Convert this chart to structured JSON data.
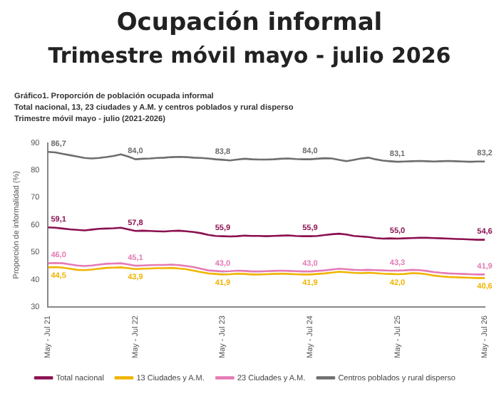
{
  "chart_data": {
    "type": "line",
    "title": "Ocupación informal",
    "subtitle": "Trimestre móvil mayo - julio 2026",
    "annotations": [
      "Gráfico1. Proporción de población ocupada informal",
      "Total nacional, 13, 23 ciudades y A.M. y centros poblados y rural disperso",
      "Trimestre móvil mayo - julio (2021-2026)"
    ],
    "ylabel": "Proporción de informalidad (%)",
    "categories": [
      "May - Jul 21",
      null,
      null,
      null,
      null,
      null,
      null,
      null,
      null,
      null,
      null,
      null,
      "May - Jul 22",
      null,
      null,
      null,
      null,
      null,
      null,
      null,
      null,
      null,
      null,
      null,
      "May - Jul 23",
      null,
      null,
      null,
      null,
      null,
      null,
      null,
      null,
      null,
      null,
      null,
      "May - Jul 24",
      null,
      null,
      null,
      null,
      null,
      null,
      null,
      null,
      null,
      null,
      null,
      "May - Jul 25",
      null,
      null,
      null,
      null,
      null,
      null,
      null,
      null,
      null,
      null,
      null,
      "May - Jul 26"
    ],
    "ylim": [
      30,
      90
    ],
    "yticks": [
      30,
      40,
      50,
      60,
      70,
      80,
      90
    ],
    "grid": false,
    "legend": "bottom",
    "marker": "none",
    "series": [
      {
        "name": "Total nacional",
        "color": "#8b1050",
        "values": [
          59.1,
          59.0,
          58.7,
          58.4,
          58.2,
          58.0,
          58.3,
          58.6,
          58.7,
          58.8,
          59.0,
          58.4,
          57.8,
          57.9,
          57.8,
          57.7,
          57.6,
          57.8,
          57.9,
          57.7,
          57.4,
          57.0,
          56.4,
          56.0,
          55.9,
          55.8,
          55.9,
          56.1,
          56.0,
          56.0,
          55.9,
          56.0,
          56.1,
          56.2,
          56.0,
          55.9,
          55.9,
          56.0,
          56.3,
          56.6,
          56.8,
          56.5,
          56.0,
          55.8,
          55.6,
          55.2,
          55.0,
          55.1,
          55.0,
          55.1,
          55.2,
          55.3,
          55.3,
          55.2,
          55.1,
          55.0,
          54.9,
          54.8,
          54.7,
          54.6,
          54.6
        ],
        "value_labels": [
          "59,1",
          null,
          null,
          null,
          null,
          null,
          null,
          null,
          null,
          null,
          null,
          null,
          "57,8",
          null,
          null,
          null,
          null,
          null,
          null,
          null,
          null,
          null,
          null,
          null,
          "55,9",
          null,
          null,
          null,
          null,
          null,
          null,
          null,
          null,
          null,
          null,
          null,
          "55,9",
          null,
          null,
          null,
          null,
          null,
          null,
          null,
          null,
          null,
          null,
          null,
          "55,0",
          null,
          null,
          null,
          null,
          null,
          null,
          null,
          null,
          null,
          null,
          null,
          "54,6"
        ]
      },
      {
        "name": "13 Ciudades y A.M.",
        "color": "#f0b400",
        "values": [
          44.5,
          44.6,
          44.4,
          44.0,
          43.6,
          43.5,
          43.7,
          44.0,
          44.3,
          44.4,
          44.5,
          44.2,
          43.9,
          44.0,
          44.1,
          44.2,
          44.2,
          44.3,
          44.1,
          43.8,
          43.3,
          42.8,
          42.3,
          42.1,
          41.9,
          42.0,
          42.2,
          42.1,
          41.9,
          41.9,
          42.0,
          42.1,
          42.2,
          42.1,
          42.0,
          41.9,
          41.9,
          42.1,
          42.3,
          42.6,
          42.9,
          42.7,
          42.5,
          42.4,
          42.5,
          42.4,
          42.2,
          42.1,
          42.0,
          42.1,
          42.4,
          42.3,
          42.0,
          41.5,
          41.2,
          41.0,
          40.9,
          40.8,
          40.7,
          40.6,
          40.6
        ],
        "value_labels": [
          "44,5",
          null,
          null,
          null,
          null,
          null,
          null,
          null,
          null,
          null,
          null,
          null,
          "43,9",
          null,
          null,
          null,
          null,
          null,
          null,
          null,
          null,
          null,
          null,
          null,
          "41,9",
          null,
          null,
          null,
          null,
          null,
          null,
          null,
          null,
          null,
          null,
          null,
          "41,9",
          null,
          null,
          null,
          null,
          null,
          null,
          null,
          null,
          null,
          null,
          null,
          "42,0",
          null,
          null,
          null,
          null,
          null,
          null,
          null,
          null,
          null,
          null,
          null,
          "40,6"
        ]
      },
      {
        "name": "23 Ciudades y A.M.",
        "color": "#e57ab5",
        "values": [
          46.0,
          46.1,
          46.0,
          45.6,
          45.2,
          45.0,
          45.2,
          45.5,
          45.8,
          45.9,
          46.0,
          45.6,
          45.1,
          45.2,
          45.3,
          45.4,
          45.4,
          45.5,
          45.3,
          45.0,
          44.6,
          44.0,
          43.4,
          43.2,
          43.0,
          43.1,
          43.3,
          43.2,
          43.0,
          43.0,
          43.1,
          43.2,
          43.3,
          43.2,
          43.1,
          43.0,
          43.0,
          43.2,
          43.4,
          43.7,
          44.0,
          43.8,
          43.6,
          43.5,
          43.6,
          43.5,
          43.4,
          43.3,
          43.3,
          43.4,
          43.6,
          43.5,
          43.2,
          42.8,
          42.5,
          42.3,
          42.2,
          42.1,
          42.0,
          41.9,
          41.9
        ],
        "value_labels": [
          "46,0",
          null,
          null,
          null,
          null,
          null,
          null,
          null,
          null,
          null,
          null,
          null,
          "45,1",
          null,
          null,
          null,
          null,
          null,
          null,
          null,
          null,
          null,
          null,
          null,
          "43,0",
          null,
          null,
          null,
          null,
          null,
          null,
          null,
          null,
          null,
          null,
          null,
          "43,0",
          null,
          null,
          null,
          null,
          null,
          null,
          null,
          null,
          null,
          null,
          null,
          "43,3",
          null,
          null,
          null,
          null,
          null,
          null,
          null,
          null,
          null,
          null,
          null,
          "41,9"
        ]
      },
      {
        "name": "Centros poblados y rural disperso",
        "color": "#6e6e6e",
        "values": [
          86.7,
          86.5,
          86.0,
          85.5,
          85.0,
          84.5,
          84.3,
          84.5,
          84.8,
          85.2,
          85.8,
          85.0,
          84.0,
          84.2,
          84.3,
          84.5,
          84.6,
          84.8,
          84.9,
          84.8,
          84.6,
          84.5,
          84.3,
          84.0,
          83.8,
          83.6,
          83.9,
          84.2,
          84.0,
          83.9,
          83.9,
          84.0,
          84.2,
          84.3,
          84.1,
          84.0,
          84.0,
          84.2,
          84.4,
          84.3,
          83.8,
          83.3,
          83.8,
          84.3,
          84.6,
          84.0,
          83.5,
          83.3,
          83.1,
          83.2,
          83.3,
          83.4,
          83.3,
          83.2,
          83.3,
          83.4,
          83.3,
          83.2,
          83.1,
          83.2,
          83.2
        ],
        "value_labels": [
          "86,7",
          null,
          null,
          null,
          null,
          null,
          null,
          null,
          null,
          null,
          null,
          null,
          "84,0",
          null,
          null,
          null,
          null,
          null,
          null,
          null,
          null,
          null,
          null,
          null,
          "83,8",
          null,
          null,
          null,
          null,
          null,
          null,
          null,
          null,
          null,
          null,
          null,
          "84,0",
          null,
          null,
          null,
          null,
          null,
          null,
          null,
          null,
          null,
          null,
          null,
          "83,1",
          null,
          null,
          null,
          null,
          null,
          null,
          null,
          null,
          null,
          null,
          null,
          "83,2"
        ]
      }
    ]
  }
}
